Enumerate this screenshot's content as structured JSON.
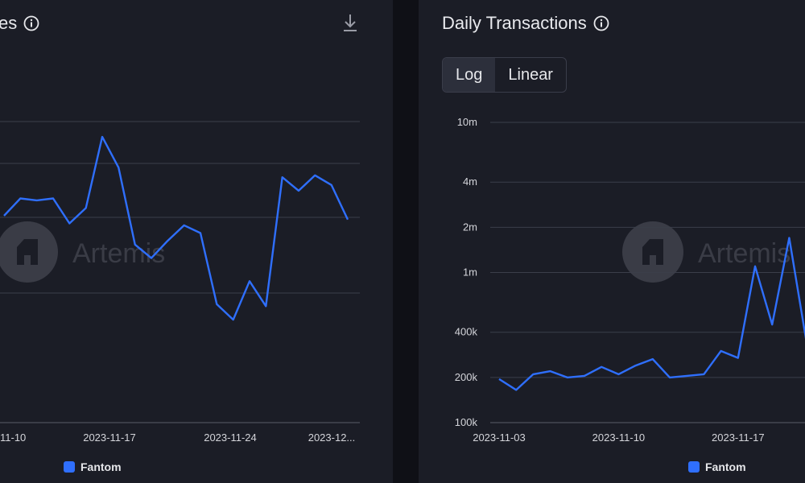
{
  "left_panel": {
    "title": "es",
    "legend_label": "Fantom"
  },
  "right_panel": {
    "title": "Daily Transactions",
    "scale_options": [
      "Log",
      "Linear"
    ],
    "active_scale": "Log",
    "legend_label": "Fantom"
  },
  "watermark": "Artemis",
  "colors": {
    "line": "#2f6ffd",
    "grid": "#3b3e4a",
    "axis": "#5a5d68",
    "panel": "#1b1d26"
  },
  "chart_data": [
    {
      "type": "line",
      "title": "",
      "x_tick_labels": [
        "11-10",
        "2023-11-17",
        "2023-11-24",
        "2023-12..."
      ],
      "y_ticks": [],
      "ylim": [
        0,
        100
      ],
      "series": [
        {
          "name": "Fantom",
          "values": [
            59,
            68,
            67,
            68,
            55,
            63,
            100,
            84,
            44,
            37,
            46,
            54,
            50,
            13,
            5,
            25,
            12,
            79,
            72,
            80,
            75,
            57
          ]
        }
      ],
      "grid": true
    },
    {
      "type": "line",
      "title": "Daily Transactions",
      "scale": "log",
      "x_tick_labels": [
        "2023-11-03",
        "2023-11-10",
        "2023-11-17"
      ],
      "y_ticks": [
        100000,
        200000,
        400000,
        1000000,
        2000000,
        4000000,
        10000000
      ],
      "y_tick_labels": [
        "100k",
        "200k",
        "400k",
        "1m",
        "2m",
        "4m",
        "10m"
      ],
      "ylim": [
        100000,
        10000000
      ],
      "series": [
        {
          "name": "Fantom",
          "x": [
            "2023-11-03",
            "2023-11-04",
            "2023-11-05",
            "2023-11-06",
            "2023-11-07",
            "2023-11-08",
            "2023-11-09",
            "2023-11-10",
            "2023-11-11",
            "2023-11-12",
            "2023-11-13",
            "2023-11-14",
            "2023-11-15",
            "2023-11-16",
            "2023-11-17",
            "2023-11-18",
            "2023-11-19",
            "2023-11-20",
            "2023-11-21"
          ],
          "values": [
            195000,
            165000,
            210000,
            220000,
            200000,
            205000,
            235000,
            210000,
            240000,
            265000,
            200000,
            205000,
            210000,
            300000,
            270000,
            1100000,
            450000,
            1700000,
            350000
          ]
        }
      ],
      "grid": true
    }
  ]
}
